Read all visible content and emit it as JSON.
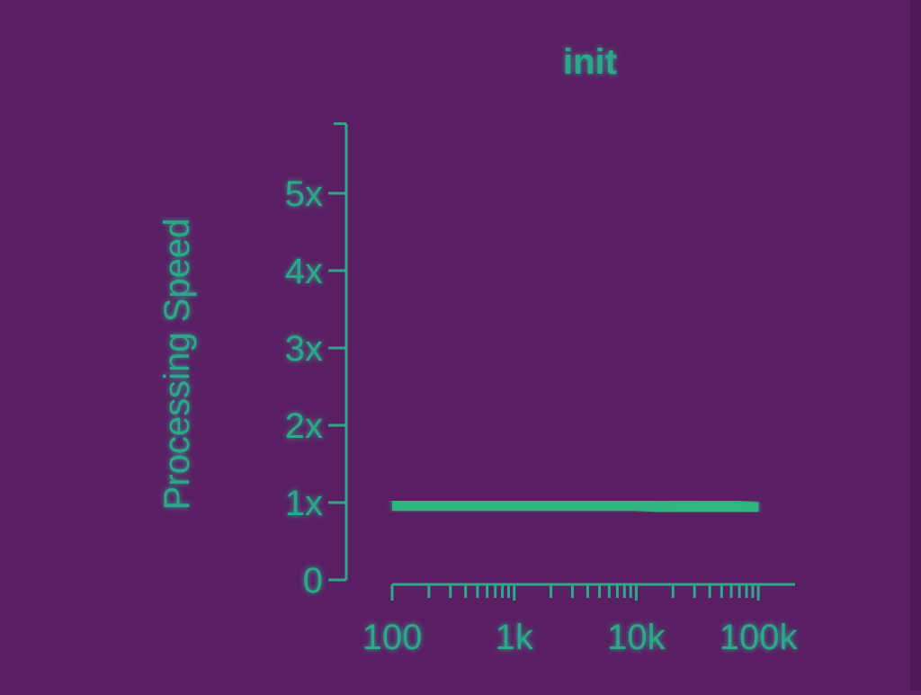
{
  "colors": {
    "background": "#5a1f63",
    "foreground": "#2aa889",
    "gridline": "#4a6f9a",
    "series": "#2fb87f"
  },
  "chart_data": {
    "type": "line",
    "title": "init",
    "ylabel": "Processing Speed",
    "xlabel": "",
    "x_scale": "log",
    "xlim": [
      100,
      200000
    ],
    "ylim": [
      0,
      5.9
    ],
    "x_ticks": [
      {
        "value": 100,
        "label": "100"
      },
      {
        "value": 1000,
        "label": "1k"
      },
      {
        "value": 10000,
        "label": "10k"
      },
      {
        "value": 100000,
        "label": "100k"
      }
    ],
    "y_ticks": [
      {
        "value": 0,
        "label": "0"
      },
      {
        "value": 1,
        "label": "1x"
      },
      {
        "value": 2,
        "label": "2x"
      },
      {
        "value": 3,
        "label": "3x"
      },
      {
        "value": 4,
        "label": "4x"
      },
      {
        "value": 5,
        "label": "5x"
      }
    ],
    "grid": {
      "horizontal": true,
      "vertical": false
    },
    "series": [
      {
        "x": [
          100,
          300,
          1000,
          3000,
          10000,
          30000,
          100000
        ],
        "y": [
          1.0,
          1.0,
          1.0,
          1.0,
          1.0,
          0.95,
          0.9
        ]
      }
    ]
  }
}
